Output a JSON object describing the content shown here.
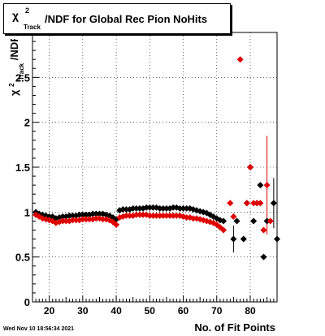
{
  "title": {
    "chi": "χ",
    "sup": "2",
    "sub": "Track",
    "rest": "/NDF for Global Rec Pion NoHits"
  },
  "ylabel": {
    "chi": "χ",
    "sup": "2",
    "sub": "Track",
    "rest": "/NDF"
  },
  "xlabel": "No. of Fit Points",
  "datestamp": "Wed Nov 10 18:56:34 2021",
  "chart_data": {
    "type": "scatter",
    "title": "χ²_Track/NDF for Global Rec Pion NoHits",
    "xlabel": "No. of Fit Points",
    "ylabel": "χ²_Track/NDF",
    "xlim": [
      15,
      88
    ],
    "ylim": [
      0,
      3
    ],
    "xticks": [
      20,
      30,
      40,
      50,
      60,
      70,
      80
    ],
    "yticks": [
      0,
      0.5,
      1,
      1.5,
      2,
      2.5
    ],
    "ytick_labels": [
      "0",
      "0.5",
      "1",
      "1.5",
      "2",
      "2.5"
    ],
    "grid": true,
    "series": [
      {
        "color": "#000000",
        "points": [
          [
            16,
            1.0
          ],
          [
            17,
            0.98
          ],
          [
            18,
            0.97
          ],
          [
            19,
            0.96
          ],
          [
            20,
            0.95
          ],
          [
            21,
            0.95
          ],
          [
            22,
            0.93
          ],
          [
            23,
            0.94
          ],
          [
            24,
            0.95
          ],
          [
            25,
            0.95
          ],
          [
            26,
            0.96
          ],
          [
            27,
            0.96
          ],
          [
            28,
            0.96
          ],
          [
            29,
            0.97
          ],
          [
            30,
            0.97
          ],
          [
            31,
            0.97
          ],
          [
            32,
            0.97
          ],
          [
            33,
            0.98
          ],
          [
            34,
            0.98
          ],
          [
            35,
            0.98
          ],
          [
            36,
            0.98
          ],
          [
            37,
            0.97
          ],
          [
            38,
            0.96
          ],
          [
            39,
            0.94
          ],
          [
            40,
            0.92
          ],
          [
            41,
            1.02
          ],
          [
            42,
            1.03
          ],
          [
            43,
            1.03
          ],
          [
            44,
            1.03
          ],
          [
            45,
            1.04
          ],
          [
            46,
            1.04
          ],
          [
            47,
            1.04
          ],
          [
            48,
            1.04
          ],
          [
            49,
            1.05
          ],
          [
            50,
            1.05
          ],
          [
            51,
            1.05
          ],
          [
            52,
            1.05
          ],
          [
            53,
            1.04
          ],
          [
            54,
            1.04
          ],
          [
            55,
            1.04
          ],
          [
            56,
            1.04
          ],
          [
            57,
            1.05
          ],
          [
            58,
            1.05
          ],
          [
            59,
            1.04
          ],
          [
            60,
            1.04
          ],
          [
            61,
            1.04
          ],
          [
            62,
            1.04
          ],
          [
            63,
            1.03
          ],
          [
            64,
            1.02
          ],
          [
            65,
            1.01
          ],
          [
            66,
            1.0
          ],
          [
            67,
            0.99
          ],
          [
            68,
            0.97
          ],
          [
            69,
            0.95
          ],
          [
            70,
            0.93
          ],
          [
            71,
            0.91
          ],
          [
            72,
            0.9
          ],
          [
            75,
            0.7
          ],
          [
            76,
            0.9
          ],
          [
            78,
            0.7
          ],
          [
            79,
            1.1
          ],
          [
            80,
            1.5
          ],
          [
            81,
            0.9
          ],
          [
            82,
            1.1
          ],
          [
            83,
            1.3
          ],
          [
            84,
            0.5
          ],
          [
            85,
            0.9
          ],
          [
            87,
            1.1
          ],
          [
            88,
            0.7
          ]
        ],
        "errors": [
          [
            75,
            0.15
          ],
          [
            87,
            0.28
          ]
        ]
      },
      {
        "color": "#e00000",
        "points": [
          [
            16,
            0.97
          ],
          [
            17,
            0.95
          ],
          [
            18,
            0.93
          ],
          [
            19,
            0.92
          ],
          [
            20,
            0.91
          ],
          [
            21,
            0.9
          ],
          [
            22,
            0.88
          ],
          [
            23,
            0.89
          ],
          [
            24,
            0.9
          ],
          [
            25,
            0.9
          ],
          [
            26,
            0.9
          ],
          [
            27,
            0.91
          ],
          [
            28,
            0.91
          ],
          [
            29,
            0.91
          ],
          [
            30,
            0.92
          ],
          [
            31,
            0.92
          ],
          [
            32,
            0.92
          ],
          [
            33,
            0.92
          ],
          [
            34,
            0.93
          ],
          [
            35,
            0.93
          ],
          [
            36,
            0.92
          ],
          [
            37,
            0.92
          ],
          [
            38,
            0.91
          ],
          [
            39,
            0.89
          ],
          [
            40,
            0.86
          ],
          [
            41,
            0.94
          ],
          [
            42,
            0.95
          ],
          [
            43,
            0.96
          ],
          [
            44,
            0.96
          ],
          [
            45,
            0.96
          ],
          [
            46,
            0.97
          ],
          [
            47,
            0.97
          ],
          [
            48,
            0.97
          ],
          [
            49,
            0.97
          ],
          [
            50,
            0.96
          ],
          [
            51,
            0.96
          ],
          [
            52,
            0.96
          ],
          [
            53,
            0.96
          ],
          [
            54,
            0.96
          ],
          [
            55,
            0.96
          ],
          [
            56,
            0.96
          ],
          [
            57,
            0.96
          ],
          [
            58,
            0.96
          ],
          [
            59,
            0.96
          ],
          [
            60,
            0.95
          ],
          [
            61,
            0.94
          ],
          [
            62,
            0.94
          ],
          [
            63,
            0.93
          ],
          [
            64,
            0.93
          ],
          [
            65,
            0.92
          ],
          [
            66,
            0.91
          ],
          [
            67,
            0.9
          ],
          [
            68,
            0.89
          ],
          [
            69,
            0.88
          ],
          [
            70,
            0.86
          ],
          [
            71,
            0.83
          ],
          [
            72,
            0.8
          ],
          [
            74,
            1.1
          ],
          [
            75,
            0.95
          ],
          [
            77,
            2.7
          ],
          [
            79,
            1.1
          ],
          [
            80,
            1.5
          ],
          [
            81,
            1.1
          ],
          [
            82,
            1.1
          ],
          [
            83,
            1.1
          ],
          [
            84,
            0.8
          ],
          [
            85,
            1.3
          ],
          [
            86,
            0.9
          ]
        ],
        "errors": [
          [
            85,
            0.55
          ]
        ]
      }
    ]
  }
}
